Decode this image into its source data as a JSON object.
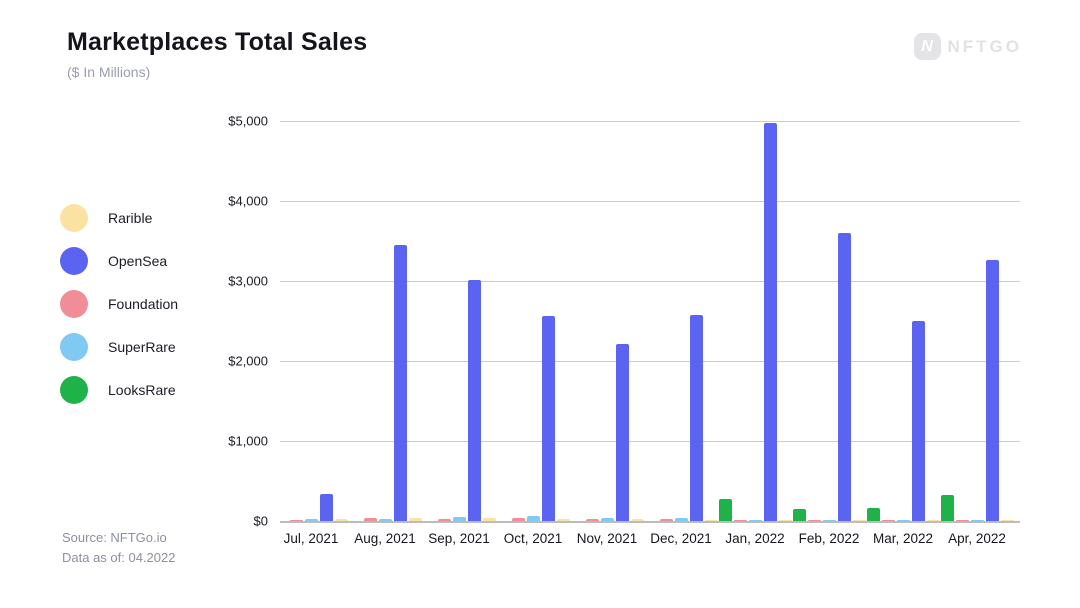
{
  "header": {
    "title": "Marketplaces Total Sales",
    "subtitle": "($ In Millions)",
    "logo_text": "NFTGO",
    "logo_letter": "N"
  },
  "legend": {
    "items": [
      "Rarible",
      "OpenSea",
      "Foundation",
      "SuperRare",
      "LooksRare"
    ]
  },
  "footer": {
    "source_line1": "Source: NFTGo.io",
    "source_line2": "Data as of: 04.2022"
  },
  "colors": {
    "title_text": "#14141c",
    "subtitle_text": "#9b9db0",
    "grid": "#cccccc",
    "axis_line": "#bcbcbc",
    "watermark": "#e4e4e8"
  },
  "chart_data": {
    "type": "bar",
    "title": "Marketplaces Total Sales",
    "subtitle": "($ In Millions)",
    "legend_position": "left",
    "grid": true,
    "ylim": [
      0,
      5000
    ],
    "ytick_step": 1000,
    "ytick_labels": [
      "$0",
      "$1,000",
      "$2,000",
      "$3,000",
      "$4,000",
      "$5,000"
    ],
    "categories": [
      "Jul, 2021",
      "Aug, 2021",
      "Sep, 2021",
      "Oct, 2021",
      "Nov, 2021",
      "Dec, 2021",
      "Jan, 2022",
      "Feb, 2022",
      "Mar, 2022",
      "Apr, 2022"
    ],
    "bar_order_note": "bars drawn left-to-right within each month group in the series order below",
    "series": [
      {
        "name": "LooksRare",
        "color": "#1fb248",
        "values": [
          0,
          0,
          0,
          0,
          0,
          0,
          270,
          150,
          160,
          330
        ]
      },
      {
        "name": "Foundation",
        "color": "#f08d97",
        "values": [
          17,
          33,
          25,
          40,
          28,
          25,
          13,
          9,
          8,
          7
        ]
      },
      {
        "name": "SuperRare",
        "color": "#7fc9f2",
        "values": [
          25,
          20,
          50,
          60,
          40,
          35,
          18,
          12,
          10,
          12
        ]
      },
      {
        "name": "OpenSea",
        "color": "#5a64f0",
        "values": [
          335,
          3455,
          3015,
          2565,
          2210,
          2575,
          4975,
          3595,
          2495,
          3260
        ]
      },
      {
        "name": "Rarible",
        "color": "#fae3a2",
        "values": [
          30,
          35,
          38,
          30,
          29,
          18,
          18,
          8,
          8,
          10
        ]
      }
    ]
  }
}
